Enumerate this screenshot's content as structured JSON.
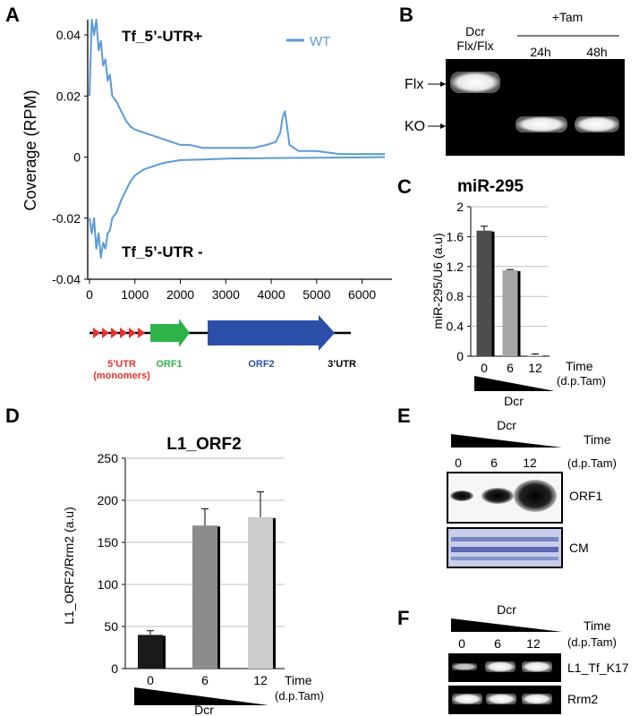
{
  "panel_labels": {
    "a": "A",
    "b": "B",
    "c": "C",
    "d": "D",
    "e": "E",
    "f": "F"
  },
  "chart_data": [
    {
      "panel": "A",
      "type": "line",
      "ylabel": "Coverage (RPM)",
      "xlim": [
        0,
        6500
      ],
      "ylim": [
        -0.04,
        0.045
      ],
      "yticks": [
        "0.04",
        "0.02",
        "0",
        "-0.02",
        "-0.04"
      ],
      "xticks": [
        "0",
        "1000",
        "2000",
        "3000",
        "4000",
        "5000",
        "6000"
      ],
      "legend": "WT",
      "series_color": "#5b9bd5",
      "annotations": {
        "plus": "Tf_5’-UTR+",
        "minus": "Tf_5’-UTR -"
      },
      "series": [
        {
          "strand": "plus",
          "x": [
            0,
            50,
            100,
            150,
            200,
            250,
            300,
            350,
            400,
            450,
            500,
            600,
            700,
            800,
            900,
            1000,
            1200,
            1400,
            1600,
            1800,
            2000,
            2200,
            2500,
            2800,
            3000,
            3300,
            3600,
            3900,
            4100,
            4200,
            4250,
            4300,
            4350,
            4400,
            4600,
            5000,
            5500,
            6000,
            6500
          ],
          "y": [
            0.02,
            0.045,
            0.04,
            0.045,
            0.035,
            0.038,
            0.03,
            0.032,
            0.025,
            0.027,
            0.02,
            0.018,
            0.015,
            0.012,
            0.01,
            0.009,
            0.008,
            0.007,
            0.006,
            0.005,
            0.004,
            0.004,
            0.003,
            0.003,
            0.003,
            0.003,
            0.003,
            0.004,
            0.005,
            0.008,
            0.013,
            0.015,
            0.01,
            0.004,
            0.002,
            0.002,
            0.001,
            0.001,
            0.001
          ]
        },
        {
          "strand": "minus",
          "x": [
            0,
            50,
            100,
            150,
            200,
            250,
            300,
            350,
            400,
            450,
            500,
            600,
            700,
            800,
            900,
            1000,
            1200,
            1400,
            1600,
            1800,
            2000,
            2500,
            3000,
            4000,
            5000,
            6000,
            6500
          ],
          "y": [
            -0.02,
            -0.025,
            -0.02,
            -0.03,
            -0.025,
            -0.033,
            -0.028,
            -0.03,
            -0.025,
            -0.024,
            -0.02,
            -0.018,
            -0.014,
            -0.011,
            -0.008,
            -0.006,
            -0.004,
            -0.003,
            -0.002,
            -0.0015,
            -0.001,
            -0.0008,
            -0.0005,
            -0.0003,
            -0.0002,
            -0.0001,
            0
          ]
        }
      ],
      "schematic": {
        "utr5": "5’UTR",
        "utr5_sub": "(monomers)",
        "orf1": "ORF1",
        "orf2": "ORF2",
        "utr3": "3’UTR",
        "colors": {
          "utr5": "#e8312f",
          "orf1": "#2db34a",
          "orf2": "#2b4fa8"
        }
      }
    },
    {
      "panel": "C",
      "type": "bar",
      "title": "miR-295",
      "ylabel": "miR-295/U6 (a.u)",
      "categories": [
        "0",
        "6",
        "12"
      ],
      "values": [
        1.68,
        1.15,
        0.02
      ],
      "errors": [
        0.06,
        0.01,
        0.01
      ],
      "colors": [
        "#4d4d4d",
        "#a6a6a6",
        "#d9d9d9"
      ],
      "ylim": [
        0,
        2
      ],
      "yticks": [
        "0",
        "0.4",
        "0.8",
        "1.2",
        "1.6",
        "2"
      ],
      "xlabel": "Time",
      "xlabel_sub": "(d.p.Tam)",
      "gradient_label": "Dcr"
    },
    {
      "panel": "D",
      "type": "bar",
      "title": "L1_ORF2",
      "ylabel": "L1_ORF2/Rrm2 (a.u)",
      "categories": [
        "0",
        "6",
        "12"
      ],
      "values": [
        40,
        170,
        180
      ],
      "errors": [
        5,
        20,
        30
      ],
      "colors": [
        "#1a1a1a",
        "#8c8c8c",
        "#cccccc"
      ],
      "ylim": [
        0,
        250
      ],
      "yticks": [
        "0",
        "50",
        "100",
        "150",
        "200",
        "250"
      ],
      "xlabel": "Time",
      "xlabel_sub": "(d.p.Tam)",
      "gradient_label": "Dcr"
    }
  ],
  "gel_b": {
    "lane1_l1": "Dcr",
    "lane1_l2": "Flx/Flx",
    "tam": "+Tam",
    "lane2": "24h",
    "lane3": "48h",
    "flx": "Flx",
    "ko": "KO"
  },
  "blot_e": {
    "dcr": "Dcr",
    "time": "Time",
    "time_sub": "(d.p.Tam)",
    "lanes": [
      "0",
      "6",
      "12"
    ],
    "orf1": "ORF1",
    "cm": "CM"
  },
  "gel_f": {
    "dcr": "Dcr",
    "time": "Time",
    "time_sub": "(d.p.Tam)",
    "lanes": [
      "0",
      "6",
      "12"
    ],
    "band1": "L1_Tf_K17",
    "band2": "Rrm2"
  }
}
